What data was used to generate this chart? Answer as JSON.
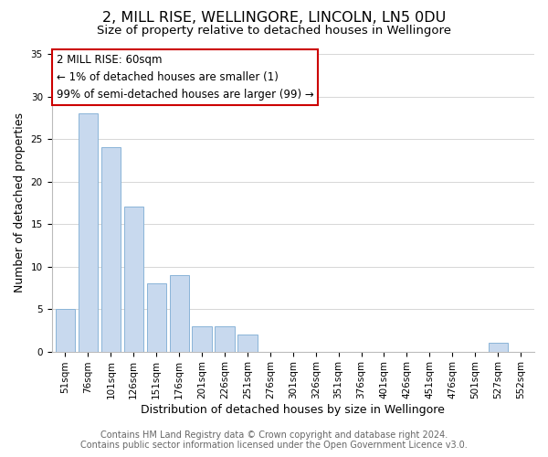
{
  "title": "2, MILL RISE, WELLINGORE, LINCOLN, LN5 0DU",
  "subtitle": "Size of property relative to detached houses in Wellingore",
  "xlabel": "Distribution of detached houses by size in Wellingore",
  "ylabel": "Number of detached properties",
  "categories": [
    "51sqm",
    "76sqm",
    "101sqm",
    "126sqm",
    "151sqm",
    "176sqm",
    "201sqm",
    "226sqm",
    "251sqm",
    "276sqm",
    "301sqm",
    "326sqm",
    "351sqm",
    "376sqm",
    "401sqm",
    "426sqm",
    "451sqm",
    "476sqm",
    "501sqm",
    "527sqm",
    "552sqm"
  ],
  "values": [
    5,
    28,
    24,
    17,
    8,
    9,
    3,
    3,
    2,
    0,
    0,
    0,
    0,
    0,
    0,
    0,
    0,
    0,
    0,
    1,
    0
  ],
  "bar_color": "#c8d9ee",
  "bar_edge_color": "#8ab4d8",
  "ylim": [
    0,
    35
  ],
  "yticks": [
    0,
    5,
    10,
    15,
    20,
    25,
    30,
    35
  ],
  "annotation_box_text": "2 MILL RISE: 60sqm\n← 1% of detached houses are smaller (1)\n99% of semi-detached houses are larger (99) →",
  "annotation_box_color": "#ffffff",
  "annotation_box_edge_color": "#cc0000",
  "footer_line1": "Contains HM Land Registry data © Crown copyright and database right 2024.",
  "footer_line2": "Contains public sector information licensed under the Open Government Licence v3.0.",
  "background_color": "#ffffff",
  "grid_color": "#d0d0d0",
  "title_fontsize": 11.5,
  "subtitle_fontsize": 9.5,
  "axis_label_fontsize": 9,
  "tick_fontsize": 7.5,
  "footer_fontsize": 7,
  "annotation_fontsize": 8.5,
  "footer_color": "#666666"
}
